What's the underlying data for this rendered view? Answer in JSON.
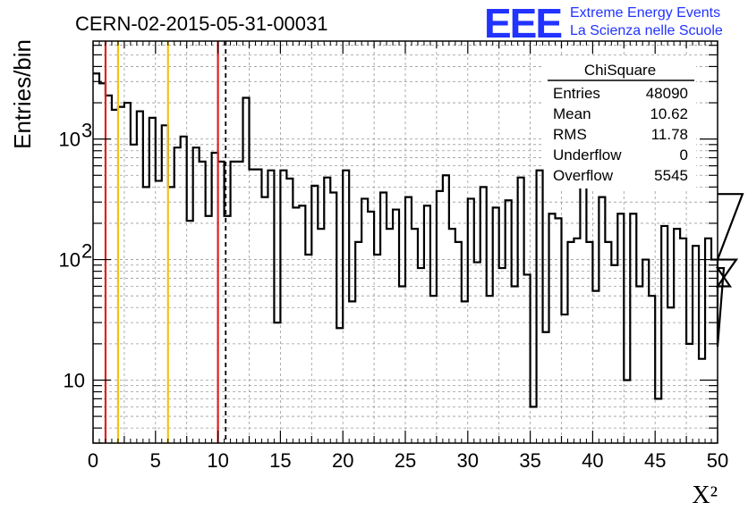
{
  "chart_data": {
    "type": "histogram",
    "title": "CERN-02-2015-05-31-00031",
    "xlabel": "X²",
    "ylabel": "Entries/bin",
    "yscale": "log",
    "xlim": [
      0,
      50
    ],
    "ylim": [
      3,
      6500
    ],
    "bin_width": 0.5,
    "x_ticks": [
      "0",
      "5",
      "10",
      "15",
      "20",
      "25",
      "30",
      "35",
      "40",
      "45",
      "50"
    ],
    "y_tick_labels": [
      {
        "value": 10,
        "label": "10"
      },
      {
        "value": 100,
        "label": "10",
        "sup": "2"
      },
      {
        "value": 1000,
        "label": "10",
        "sup": "3"
      }
    ],
    "values": [
      3500,
      2900,
      2300,
      1750,
      1850,
      2000,
      900,
      1700,
      400,
      1500,
      450,
      1300,
      400,
      850,
      1050,
      210,
      850,
      650,
      230,
      770,
      650,
      230,
      650,
      650,
      2200,
      560,
      560,
      330,
      550,
      30,
      550,
      470,
      270,
      280,
      110,
      410,
      180,
      480,
      360,
      27,
      550,
      45,
      140,
      320,
      250,
      110,
      360,
      180,
      260,
      60,
      330,
      180,
      85,
      280,
      50,
      370,
      500,
      180,
      140,
      45,
      320,
      95,
      400,
      50,
      270,
      85,
      310,
      60,
      480,
      75,
      6,
      550,
      25,
      240,
      220,
      35,
      140,
      150,
      440,
      140,
      55,
      330,
      140,
      90,
      240,
      10,
      240,
      60,
      100,
      50,
      7,
      190,
      40,
      180,
      150,
      20,
      130,
      15,
      150,
      100,
      19,
      85,
      60,
      100,
      350
    ],
    "reference_lines": [
      {
        "x": 1,
        "color": "#e02020",
        "style": "solid"
      },
      {
        "x": 2,
        "color": "#f2c21b",
        "style": "solid"
      },
      {
        "x": 6,
        "color": "#f2c21b",
        "style": "solid"
      },
      {
        "x": 10,
        "color": "#e02020",
        "style": "solid"
      },
      {
        "x": 10.62,
        "color": "#000000",
        "style": "dashed"
      }
    ],
    "grid": true,
    "legend": "top-right",
    "stats": {
      "name": "ChiSquare",
      "rows": [
        {
          "label": "Entries",
          "value": "48090"
        },
        {
          "label": "Mean",
          "value": "10.62"
        },
        {
          "label": "RMS",
          "value": "11.78"
        },
        {
          "label": "Underflow",
          "value": "0"
        },
        {
          "label": "Overflow",
          "value": "5545"
        }
      ]
    }
  },
  "logo": {
    "mark": "EEE",
    "line1": "Extreme Energy Events",
    "line2": "La Scienza nelle Scuole",
    "color": "#2233ff"
  }
}
